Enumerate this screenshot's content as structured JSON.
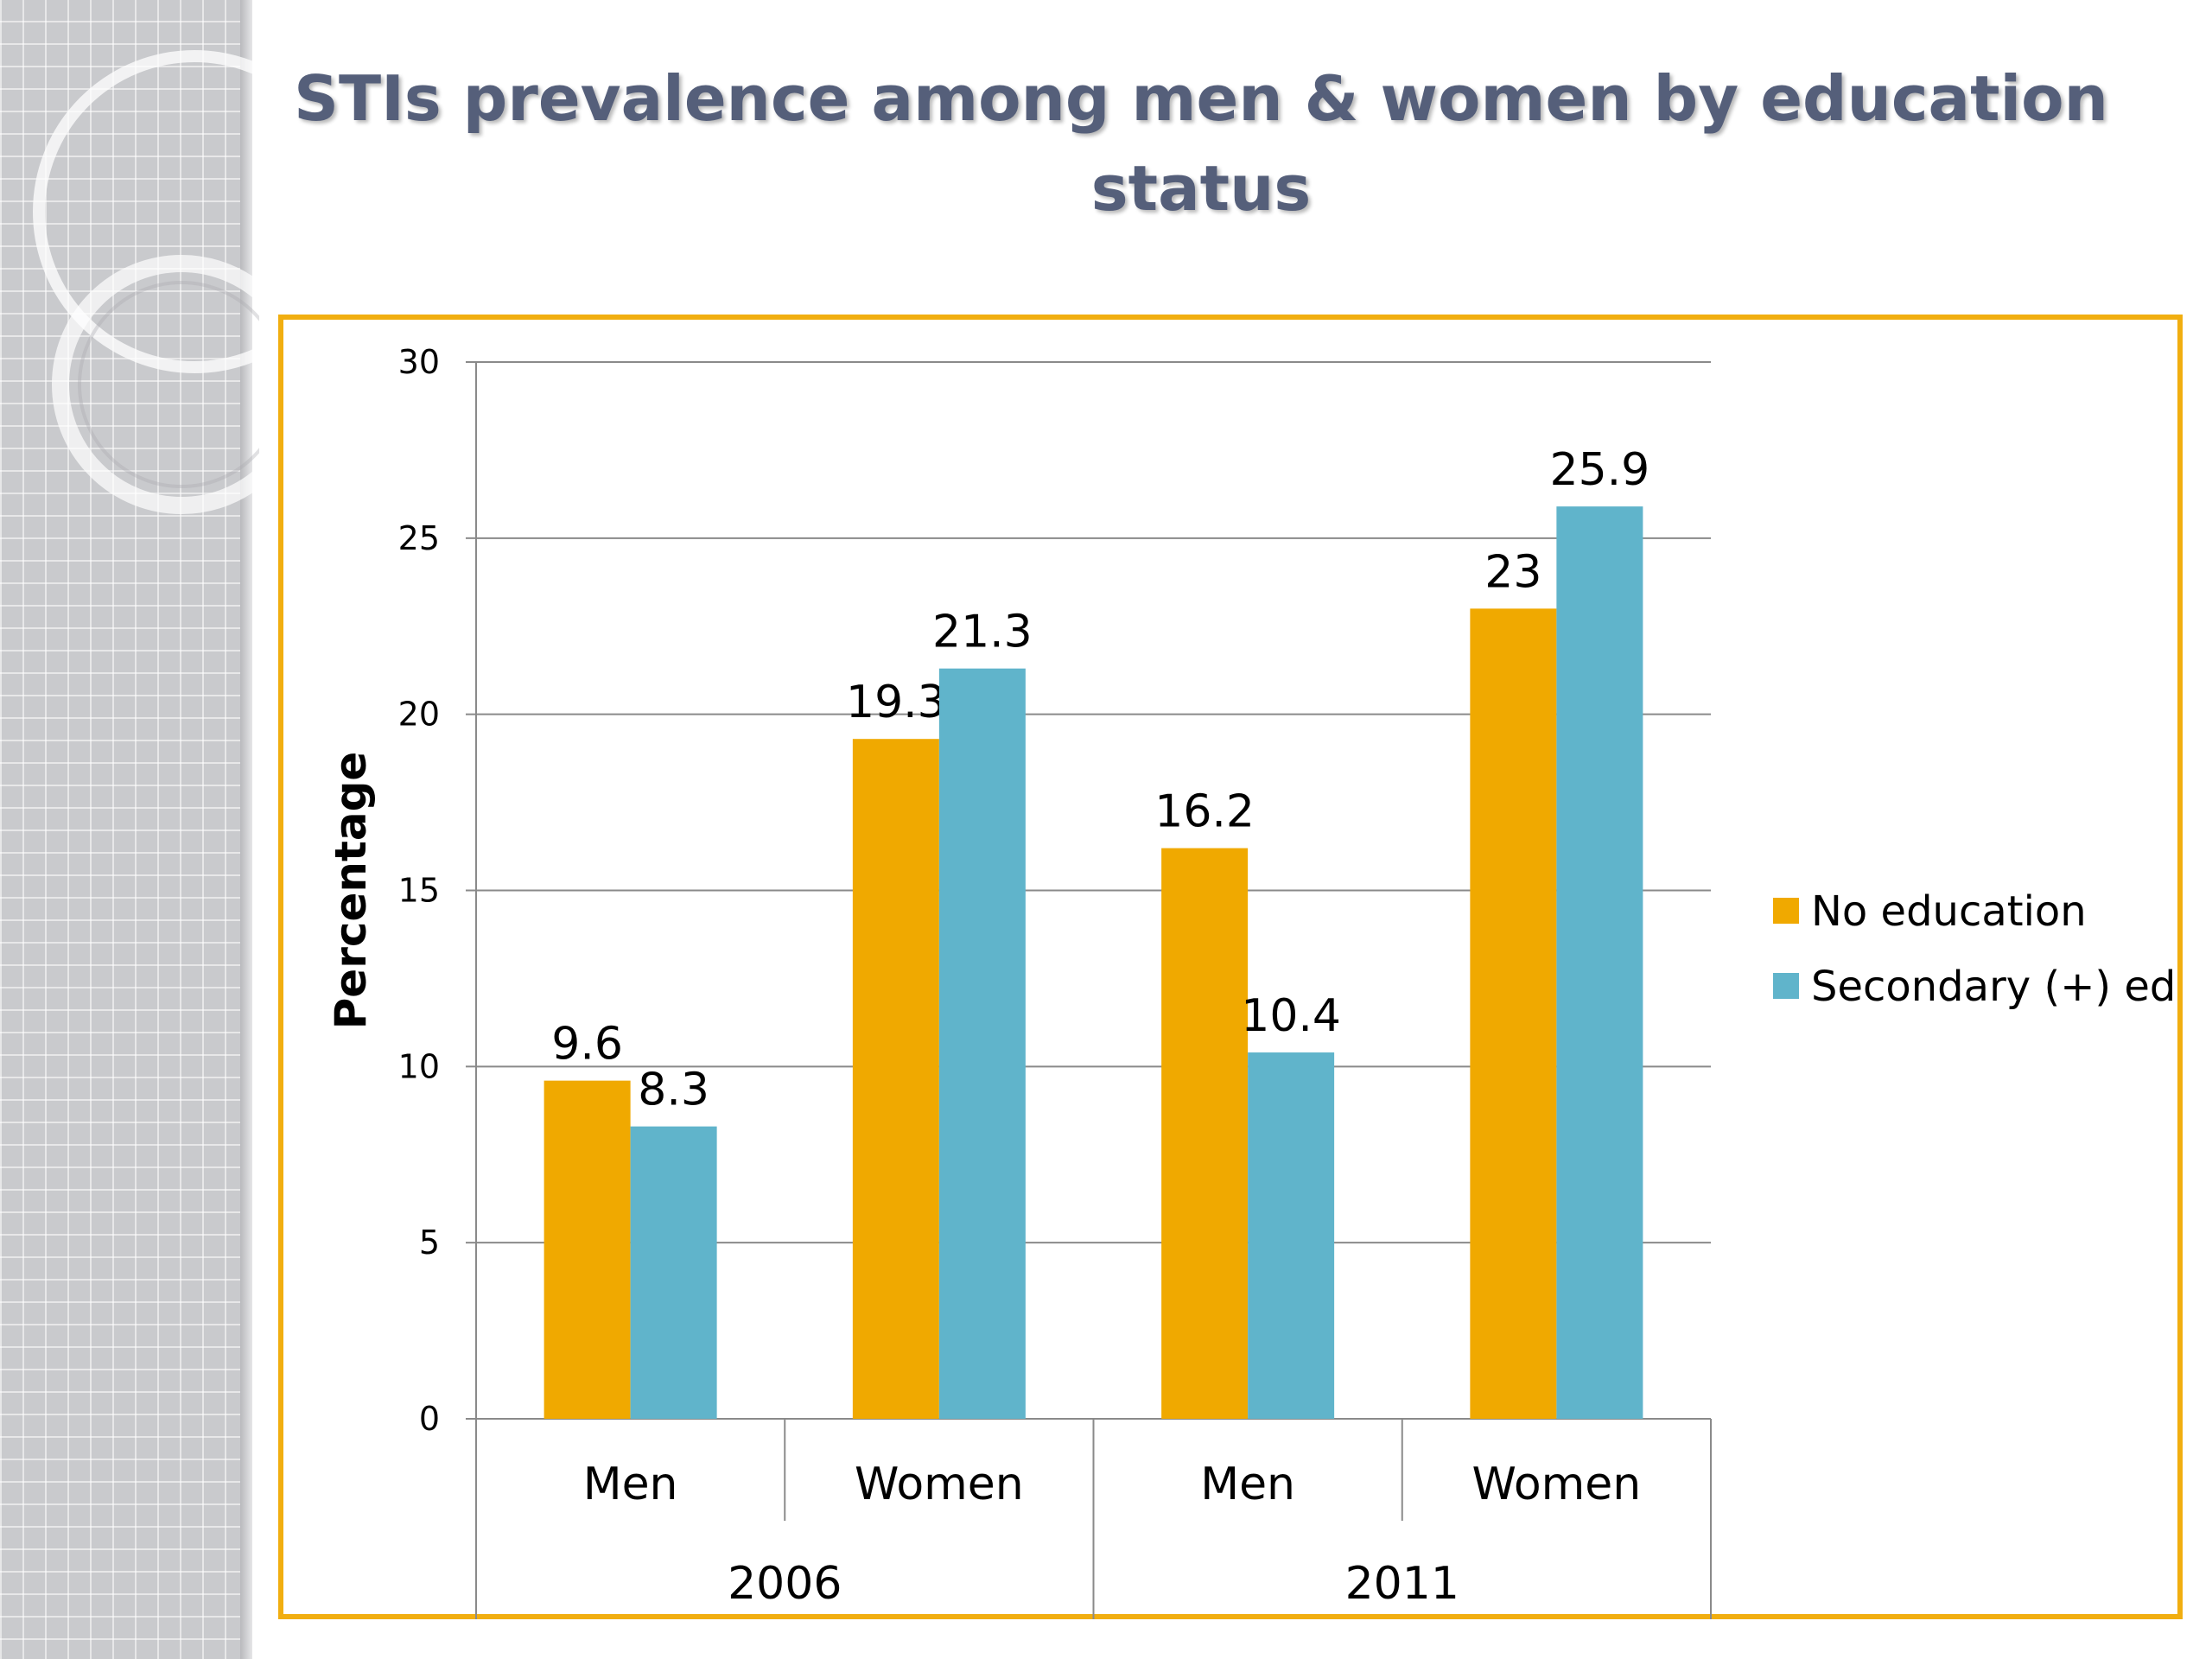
{
  "slide": {
    "title": "STIs prevalence among men & women by education status"
  },
  "colors": {
    "no_education": "#F0A900",
    "secondary": "#60B4CB",
    "frame": "#F1AE10",
    "title": "#555F7A"
  },
  "chart_data": {
    "type": "bar",
    "title": "STIs prevalence among men & women by education status",
    "ylabel": "Percentage",
    "xlabel": "",
    "ylim": [
      0,
      30
    ],
    "yticks": [
      0,
      5,
      10,
      15,
      20,
      25,
      30
    ],
    "grid": true,
    "legend_position": "right",
    "groups": [
      {
        "label": "2006",
        "categories": [
          "Men",
          "Women"
        ]
      },
      {
        "label": "2011",
        "categories": [
          "Men",
          "Women"
        ]
      }
    ],
    "categories": [
      "Men",
      "Women",
      "Men",
      "Women"
    ],
    "series": [
      {
        "name": "No education",
        "values": [
          9.6,
          19.3,
          16.2,
          23
        ]
      },
      {
        "name": "Secondary (+) ed",
        "values": [
          8.3,
          21.3,
          10.4,
          25.9
        ]
      }
    ]
  }
}
